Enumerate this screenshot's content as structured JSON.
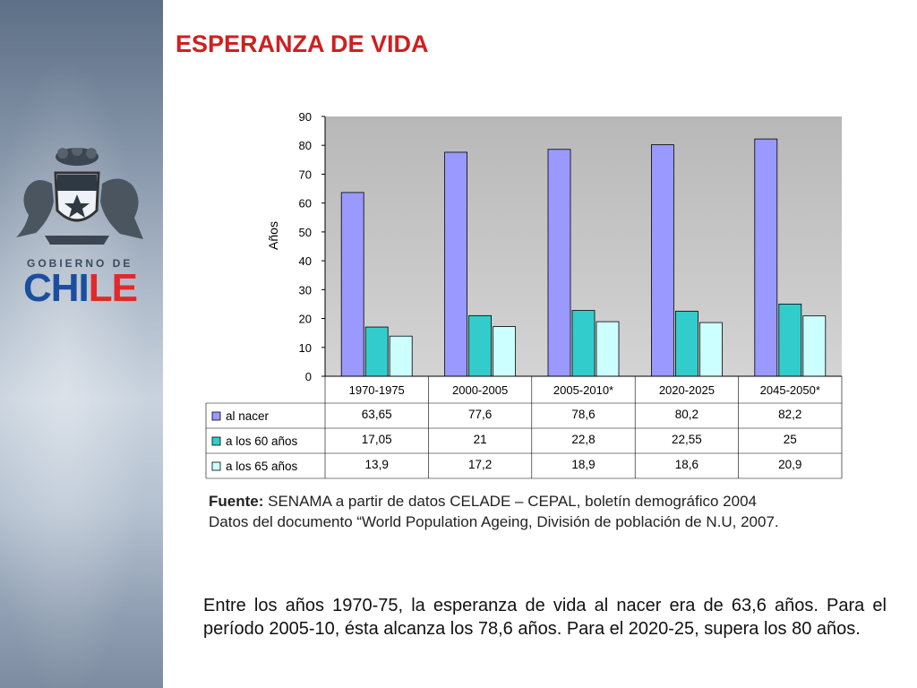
{
  "slide": {
    "title": "ESPERANZA DE VIDA",
    "logo": {
      "line1": "GOBIERNO DE",
      "line2a": "CHI",
      "line2b": "LE"
    },
    "source_label": "Fuente:",
    "source_text": " SENAMA a partir de datos CELADE – CEPAL, boletín demográfico 2004",
    "source_line2": "Datos del documento “World Population Ageing, División de población de N.U, 2007.",
    "paragraph": "Entre los años 1970-75, la esperanza de vida al nacer era de 63,6 años. Para el período 2005-10, ésta alcanza los 78,6 años. Para el 2020-25, supera los 80 años."
  },
  "colors": {
    "title": "#d01f1f",
    "al_nacer": "#9999ff",
    "a_los_60": "#33cccc",
    "a_los_65": "#ccffff",
    "plot_bg": "#c0c0c0"
  },
  "chart_data": {
    "type": "bar",
    "ylabel": "Años",
    "ylim": [
      0,
      90
    ],
    "yticks": [
      "0",
      "10",
      "20",
      "30",
      "40",
      "50",
      "60",
      "70",
      "80",
      "90"
    ],
    "grid": false,
    "legend": "data-table",
    "categories": [
      "1970-1975",
      "2000-2005",
      "2005-2010*",
      "2020-2025",
      "2045-2050*"
    ],
    "series": [
      {
        "name": "al nacer",
        "values": [
          63.65,
          77.6,
          78.6,
          80.2,
          82.2
        ],
        "labels": [
          "63,65",
          "77,6",
          "78,6",
          "80,2",
          "82,2"
        ],
        "color": "#9999ff"
      },
      {
        "name": "a los 60 años",
        "values": [
          17.05,
          21,
          22.8,
          22.55,
          25
        ],
        "labels": [
          "17,05",
          "21",
          "22,8",
          "22,55",
          "25"
        ],
        "color": "#33cccc"
      },
      {
        "name": "a los 65 años",
        "values": [
          13.9,
          17.2,
          18.9,
          18.6,
          20.9
        ],
        "labels": [
          "13,9",
          "17,2",
          "18,9",
          "18,6",
          "20,9"
        ],
        "color": "#ccffff"
      }
    ]
  }
}
